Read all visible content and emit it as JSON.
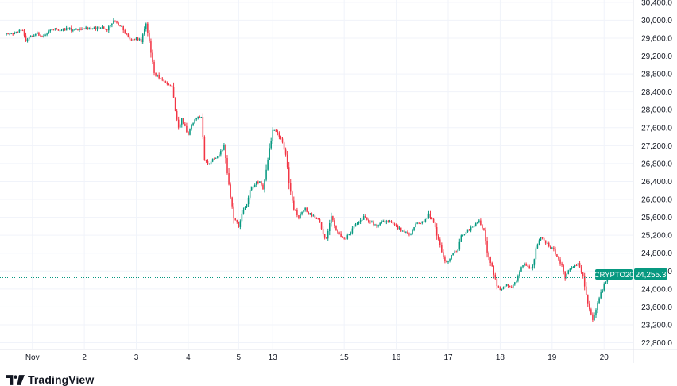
{
  "brand": {
    "name": "TradingView",
    "logo_icon": "tradingview-logo-icon"
  },
  "chart_data": {
    "type": "candlestick",
    "symbol": "CRYPTO20",
    "last_price": 24255.3,
    "last_price_label": "24,255.3",
    "colors": {
      "up": "#089981",
      "down": "#f23645",
      "grid": "#f0f3fa",
      "last_price_line": "#089981"
    },
    "grid": true,
    "ylim": [
      22650,
      30450
    ],
    "y_ticks": [
      {
        "value": 22800,
        "label": "22,800.0"
      },
      {
        "value": 23200,
        "label": "23,200.0"
      },
      {
        "value": 23600,
        "label": "23,600.0"
      },
      {
        "value": 24000,
        "label": "24,000.0"
      },
      {
        "value": 24400,
        "label": "24,400.0"
      },
      {
        "value": 24800,
        "label": "24,800.0"
      },
      {
        "value": 25200,
        "label": "25,200.0"
      },
      {
        "value": 25600,
        "label": "25,600.0"
      },
      {
        "value": 26000,
        "label": "26,000.0"
      },
      {
        "value": 26400,
        "label": "26,400.0"
      },
      {
        "value": 26800,
        "label": "26,800.0"
      },
      {
        "value": 27200,
        "label": "27,200.0"
      },
      {
        "value": 27600,
        "label": "27,600.0"
      },
      {
        "value": 28000,
        "label": "28,000.0"
      },
      {
        "value": 28400,
        "label": "28,400.0"
      },
      {
        "value": 28800,
        "label": "28,800.0"
      },
      {
        "value": 29200,
        "label": "29,200.0"
      },
      {
        "value": 29600,
        "label": "29,600.0"
      },
      {
        "value": 30000,
        "label": "30,000.0"
      },
      {
        "value": 30400,
        "label": "30,400.0"
      }
    ],
    "x_ticks": [
      {
        "index": 16,
        "label": "Nov"
      },
      {
        "index": 48,
        "label": "2"
      },
      {
        "index": 80,
        "label": "3"
      },
      {
        "index": 112,
        "label": "4"
      },
      {
        "index": 143,
        "label": "5"
      },
      {
        "index": 164,
        "label": "13"
      },
      {
        "index": 208,
        "label": "15"
      },
      {
        "index": 240,
        "label": "16"
      },
      {
        "index": 272,
        "label": "17"
      },
      {
        "index": 304,
        "label": "18"
      },
      {
        "index": 336,
        "label": "19"
      },
      {
        "index": 368,
        "label": "20"
      }
    ],
    "candle_count": 386,
    "anchors": [
      [
        0,
        29680
      ],
      [
        6,
        29720
      ],
      [
        10,
        29790
      ],
      [
        12,
        29550
      ],
      [
        15,
        29660
      ],
      [
        18,
        29700
      ],
      [
        22,
        29650
      ],
      [
        26,
        29760
      ],
      [
        30,
        29800
      ],
      [
        34,
        29780
      ],
      [
        38,
        29820
      ],
      [
        42,
        29760
      ],
      [
        46,
        29800
      ],
      [
        50,
        29830
      ],
      [
        54,
        29800
      ],
      [
        58,
        29850
      ],
      [
        62,
        29800
      ],
      [
        66,
        30000
      ],
      [
        70,
        29880
      ],
      [
        74,
        29700
      ],
      [
        76,
        29550
      ],
      [
        80,
        29600
      ],
      [
        83,
        29540
      ],
      [
        86,
        29900
      ],
      [
        89,
        29300
      ],
      [
        91,
        28800
      ],
      [
        94,
        28720
      ],
      [
        98,
        28600
      ],
      [
        102,
        28500
      ],
      [
        104,
        28000
      ],
      [
        106,
        27600
      ],
      [
        108,
        27800
      ],
      [
        112,
        27450
      ],
      [
        116,
        27800
      ],
      [
        120,
        27850
      ],
      [
        122,
        26900
      ],
      [
        124,
        26800
      ],
      [
        128,
        26900
      ],
      [
        131,
        27000
      ],
      [
        134,
        27200
      ],
      [
        137,
        26300
      ],
      [
        140,
        25600
      ],
      [
        143,
        25400
      ],
      [
        145,
        25700
      ],
      [
        148,
        25900
      ],
      [
        150,
        26200
      ],
      [
        152,
        26300
      ],
      [
        154,
        26400
      ],
      [
        156,
        26380
      ],
      [
        158,
        26250
      ],
      [
        164,
        27550
      ],
      [
        166,
        27500
      ],
      [
        170,
        27280
      ],
      [
        172,
        27000
      ],
      [
        174,
        26400
      ],
      [
        177,
        25800
      ],
      [
        180,
        25600
      ],
      [
        184,
        25800
      ],
      [
        186,
        25700
      ],
      [
        190,
        25600
      ],
      [
        193,
        25500
      ],
      [
        195,
        25200
      ],
      [
        197,
        25100
      ],
      [
        200,
        25600
      ],
      [
        203,
        25300
      ],
      [
        205,
        25250
      ],
      [
        208,
        25100
      ],
      [
        211,
        25200
      ],
      [
        214,
        25400
      ],
      [
        217,
        25500
      ],
      [
        220,
        25600
      ],
      [
        224,
        25500
      ],
      [
        228,
        25400
      ],
      [
        232,
        25500
      ],
      [
        236,
        25500
      ],
      [
        240,
        25400
      ],
      [
        244,
        25300
      ],
      [
        248,
        25200
      ],
      [
        252,
        25450
      ],
      [
        256,
        25500
      ],
      [
        260,
        25650
      ],
      [
        262,
        25550
      ],
      [
        264,
        25350
      ],
      [
        266,
        25100
      ],
      [
        268,
        24800
      ],
      [
        270,
        24600
      ],
      [
        272,
        24650
      ],
      [
        275,
        24800
      ],
      [
        278,
        24900
      ],
      [
        280,
        25200
      ],
      [
        284,
        25300
      ],
      [
        288,
        25450
      ],
      [
        291,
        25500
      ],
      [
        294,
        25300
      ],
      [
        296,
        24800
      ],
      [
        298,
        24600
      ],
      [
        300,
        24350
      ],
      [
        302,
        24100
      ],
      [
        304,
        24000
      ],
      [
        306,
        24050
      ],
      [
        308,
        24100
      ],
      [
        311,
        24050
      ],
      [
        314,
        24200
      ],
      [
        317,
        24500
      ],
      [
        320,
        24550
      ],
      [
        322,
        24450
      ],
      [
        324,
        24500
      ],
      [
        326,
        24900
      ],
      [
        328,
        25100
      ],
      [
        330,
        25150
      ],
      [
        333,
        25000
      ],
      [
        336,
        24900
      ],
      [
        339,
        24750
      ],
      [
        342,
        24500
      ],
      [
        344,
        24250
      ],
      [
        346,
        24400
      ],
      [
        349,
        24500
      ],
      [
        352,
        24550
      ],
      [
        355,
        24300
      ],
      [
        356,
        24050
      ],
      [
        358,
        23700
      ],
      [
        360,
        23450
      ],
      [
        361,
        23300
      ],
      [
        362,
        23420
      ],
      [
        364,
        23700
      ],
      [
        366,
        23900
      ],
      [
        368,
        24100
      ],
      [
        370,
        24255.3
      ]
    ]
  }
}
